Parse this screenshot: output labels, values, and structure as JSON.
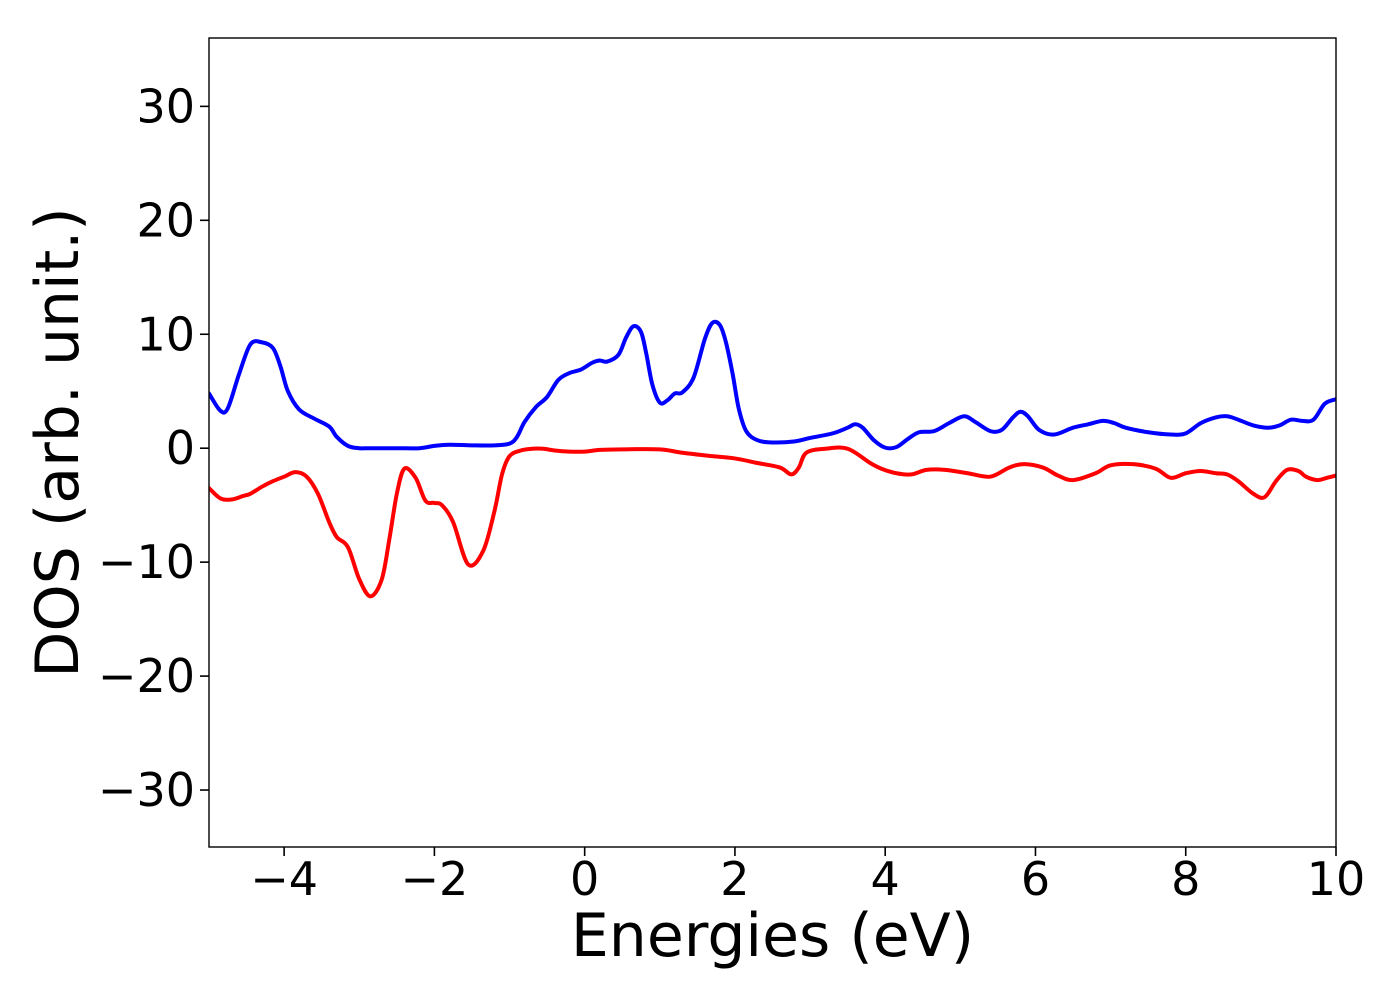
{
  "chart_data": {
    "type": "line",
    "title": "",
    "xlabel": "Energies (eV)",
    "ylabel": "DOS (arb. unit.)",
    "xlim": [
      -5,
      10
    ],
    "ylim": [
      -35,
      36
    ],
    "xticks": [
      -4,
      -2,
      0,
      2,
      4,
      6,
      8,
      10
    ],
    "yticks": [
      -30,
      -20,
      -10,
      0,
      10,
      20,
      30
    ],
    "xtick_labels": [
      "−4",
      "−2",
      "0",
      "2",
      "4",
      "6",
      "8",
      "10"
    ],
    "ytick_labels": [
      "−30",
      "−20",
      "−10",
      "0",
      "10",
      "20",
      "30"
    ],
    "grid": false,
    "legend": false,
    "series": [
      {
        "color": "#0000ff",
        "x": [
          -5.0,
          -4.85,
          -4.75,
          -4.6,
          -4.45,
          -4.3,
          -4.15,
          -4.05,
          -3.95,
          -3.8,
          -3.6,
          -3.4,
          -3.3,
          -3.15,
          -3.0,
          -2.85,
          -2.5,
          -2.2,
          -2.0,
          -1.8,
          -1.5,
          -1.2,
          -1.0,
          -0.9,
          -0.8,
          -0.65,
          -0.5,
          -0.35,
          -0.2,
          -0.05,
          0.1,
          0.2,
          0.3,
          0.45,
          0.55,
          0.65,
          0.75,
          0.82,
          0.9,
          1.0,
          1.1,
          1.2,
          1.3,
          1.45,
          1.6,
          1.7,
          1.8,
          1.88,
          1.97,
          2.05,
          2.15,
          2.3,
          2.5,
          2.8,
          3.0,
          3.3,
          3.5,
          3.6,
          3.7,
          3.85,
          4.0,
          4.15,
          4.3,
          4.45,
          4.65,
          4.85,
          5.05,
          5.2,
          5.4,
          5.55,
          5.7,
          5.8,
          5.9,
          6.05,
          6.25,
          6.5,
          6.7,
          6.9,
          7.05,
          7.2,
          7.5,
          7.8,
          8.0,
          8.2,
          8.4,
          8.55,
          8.7,
          8.9,
          9.1,
          9.25,
          9.4,
          9.55,
          9.7,
          9.85,
          10.0
        ],
        "y": [
          4.8,
          3.3,
          3.5,
          6.5,
          9.1,
          9.3,
          8.8,
          7.2,
          5.0,
          3.4,
          2.6,
          1.9,
          1.0,
          0.2,
          0.0,
          0.0,
          0.0,
          0.0,
          0.2,
          0.3,
          0.25,
          0.25,
          0.4,
          1.0,
          2.3,
          3.6,
          4.5,
          6.0,
          6.6,
          6.9,
          7.5,
          7.7,
          7.6,
          8.2,
          9.7,
          10.7,
          10.2,
          8.3,
          5.6,
          4.0,
          4.2,
          4.8,
          4.9,
          6.2,
          9.6,
          11.0,
          10.8,
          9.3,
          6.5,
          3.5,
          1.5,
          0.7,
          0.5,
          0.6,
          0.9,
          1.3,
          1.8,
          2.1,
          1.8,
          0.7,
          0.05,
          0.1,
          0.8,
          1.4,
          1.5,
          2.2,
          2.8,
          2.3,
          1.5,
          1.6,
          2.7,
          3.2,
          2.8,
          1.6,
          1.2,
          1.8,
          2.1,
          2.4,
          2.2,
          1.8,
          1.4,
          1.2,
          1.3,
          2.2,
          2.7,
          2.8,
          2.5,
          2.0,
          1.8,
          2.0,
          2.5,
          2.4,
          2.5,
          3.9,
          4.3
        ]
      },
      {
        "color": "#ff0000",
        "x": [
          -5.0,
          -4.85,
          -4.7,
          -4.55,
          -4.45,
          -4.3,
          -4.15,
          -4.0,
          -3.85,
          -3.7,
          -3.55,
          -3.4,
          -3.3,
          -3.15,
          -3.0,
          -2.85,
          -2.7,
          -2.6,
          -2.5,
          -2.4,
          -2.25,
          -2.12,
          -2.0,
          -1.9,
          -1.75,
          -1.55,
          -1.35,
          -1.2,
          -1.1,
          -1.0,
          -0.85,
          -0.7,
          -0.55,
          -0.4,
          -0.2,
          0.0,
          0.2,
          0.5,
          1.0,
          1.3,
          1.7,
          2.0,
          2.3,
          2.6,
          2.75,
          2.85,
          2.95,
          3.2,
          3.5,
          3.8,
          3.95,
          4.15,
          4.35,
          4.55,
          4.8,
          5.1,
          5.4,
          5.65,
          5.85,
          6.1,
          6.3,
          6.5,
          6.8,
          7.0,
          7.3,
          7.6,
          7.8,
          8.0,
          8.2,
          8.4,
          8.55,
          8.7,
          8.9,
          9.05,
          9.2,
          9.35,
          9.5,
          9.6,
          9.75,
          9.88,
          10.0
        ],
        "y": [
          -3.5,
          -4.4,
          -4.5,
          -4.2,
          -4.0,
          -3.4,
          -2.9,
          -2.5,
          -2.1,
          -2.5,
          -4.0,
          -6.5,
          -7.8,
          -8.7,
          -11.5,
          -13.0,
          -11.5,
          -8.0,
          -4.0,
          -1.8,
          -2.6,
          -4.6,
          -4.8,
          -5.0,
          -6.5,
          -10.2,
          -9.0,
          -5.5,
          -2.3,
          -0.7,
          -0.2,
          -0.05,
          -0.05,
          -0.2,
          -0.3,
          -0.3,
          -0.15,
          -0.1,
          -0.1,
          -0.4,
          -0.7,
          -0.9,
          -1.3,
          -1.7,
          -2.3,
          -1.7,
          -0.4,
          -0.05,
          -0.05,
          -1.3,
          -1.8,
          -2.2,
          -2.3,
          -1.9,
          -1.9,
          -2.2,
          -2.5,
          -1.7,
          -1.4,
          -1.7,
          -2.4,
          -2.8,
          -2.2,
          -1.5,
          -1.4,
          -1.8,
          -2.6,
          -2.2,
          -2.0,
          -2.2,
          -2.3,
          -2.9,
          -4.0,
          -4.3,
          -2.9,
          -1.9,
          -2.0,
          -2.5,
          -2.8,
          -2.6,
          -2.4
        ]
      }
    ]
  }
}
